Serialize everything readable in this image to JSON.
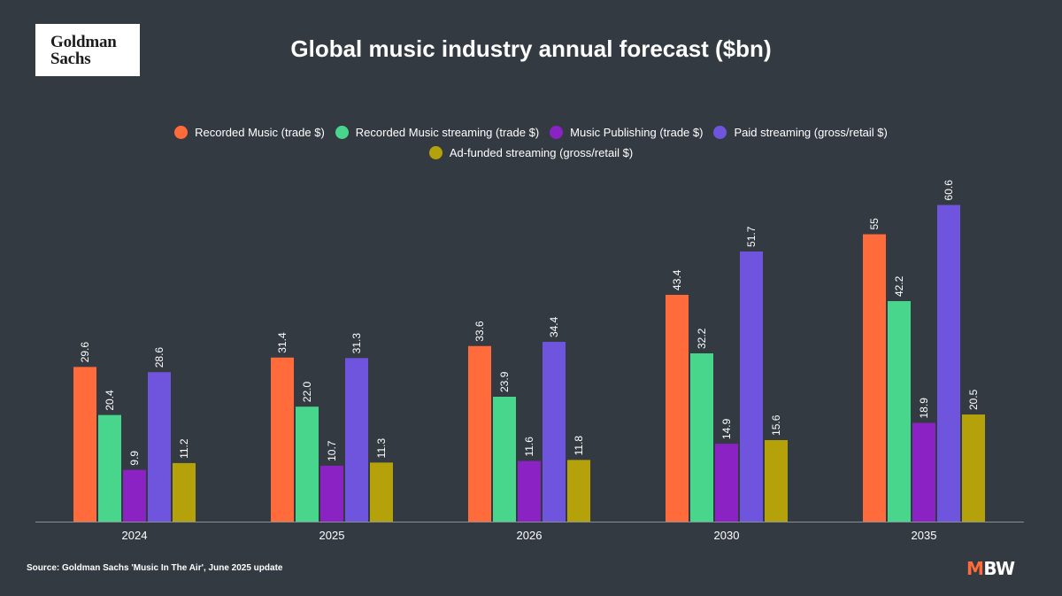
{
  "logo": {
    "line1": "Goldman",
    "line2": "Sachs"
  },
  "title": "Global music industry annual forecast ($bn)",
  "source": "Source: Goldman Sachs 'Music In The Air', June 2025 update",
  "brand": {
    "m": "M",
    "bw": "BW"
  },
  "chart_data": {
    "type": "bar",
    "title": "Global music industry annual forecast ($bn)",
    "categories": [
      "2024",
      "2025",
      "2026",
      "2030",
      "2035"
    ],
    "ylim": [
      0,
      65
    ],
    "grid": false,
    "legend_placement": "top-center",
    "series": [
      {
        "name": "Recorded Music (trade $)",
        "color": "#ff6b3a",
        "values": [
          29.6,
          31.4,
          33.6,
          43.4,
          55
        ],
        "labels": [
          "29.6",
          "31.4",
          "33.6",
          "43.4",
          "55"
        ]
      },
      {
        "name": "Recorded Music streaming (trade $)",
        "color": "#48d68c",
        "values": [
          20.4,
          22.0,
          23.9,
          32.2,
          42.2
        ],
        "labels": [
          "20.4",
          "22.0",
          "23.9",
          "32.2",
          "42.2"
        ]
      },
      {
        "name": "Music Publishing (trade $)",
        "color": "#8b22c4",
        "values": [
          9.9,
          10.7,
          11.6,
          14.9,
          18.9
        ],
        "labels": [
          "9.9",
          "10.7",
          "11.6",
          "14.9",
          "18.9"
        ]
      },
      {
        "name": "Paid streaming (gross/retail $)",
        "color": "#6f55de",
        "values": [
          28.6,
          31.3,
          34.4,
          51.7,
          60.6
        ],
        "labels": [
          "28.6",
          "31.3",
          "34.4",
          "51.7",
          "60.6"
        ]
      },
      {
        "name": "Ad-funded streaming (gross/retail $)",
        "color": "#b5a20a",
        "values": [
          11.2,
          11.3,
          11.8,
          15.6,
          20.5
        ],
        "labels": [
          "11.2",
          "11.3",
          "11.8",
          "15.6",
          "20.5"
        ]
      }
    ]
  }
}
